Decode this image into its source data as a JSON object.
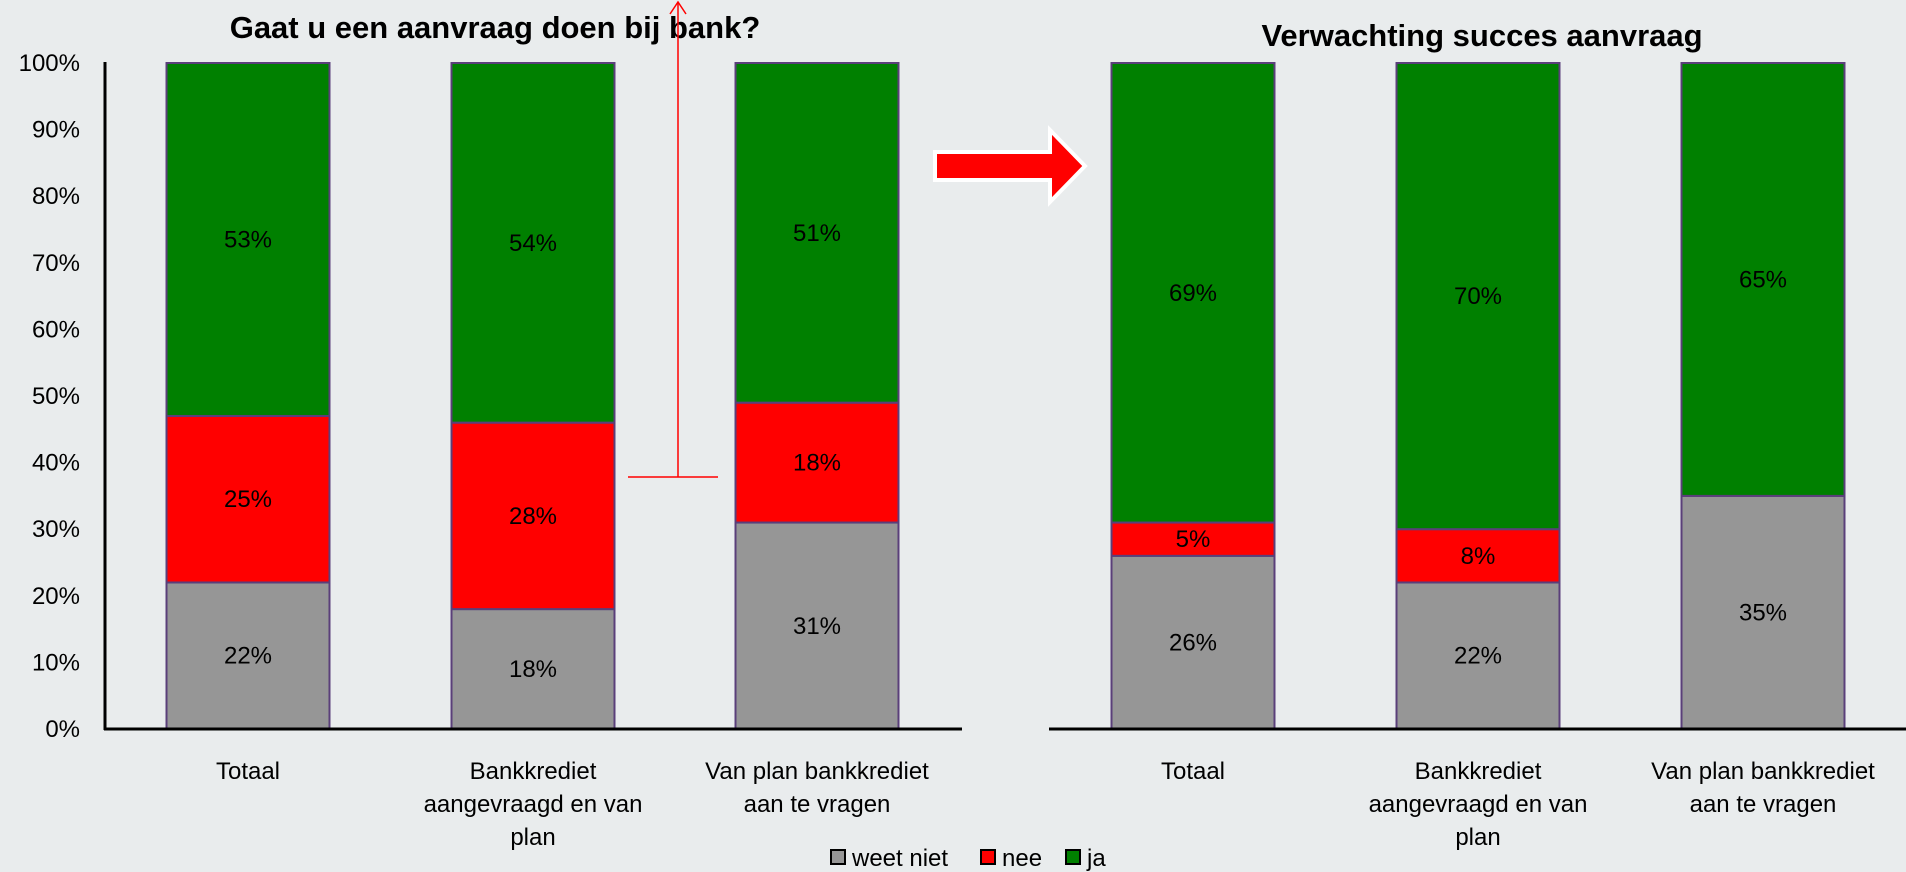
{
  "chart_data": [
    {
      "type": "bar",
      "stacked": true,
      "title": "Gaat u een aanvraag doen bij bank?",
      "categories": [
        [
          "Totaal"
        ],
        [
          "Bankkrediet",
          "aangevraagd en van",
          "plan"
        ],
        [
          "Van plan bankkrediet",
          "aan te vragen"
        ]
      ],
      "series": [
        {
          "name": "weet niet",
          "values": [
            22,
            18,
            31
          ],
          "labels": [
            "22%",
            "18%",
            "31%"
          ]
        },
        {
          "name": "nee",
          "values": [
            25,
            28,
            18
          ],
          "labels": [
            "25%",
            "28%",
            "18%"
          ]
        },
        {
          "name": "ja",
          "values": [
            53,
            54,
            51
          ],
          "labels": [
            "53%",
            "54%",
            "51%"
          ]
        }
      ],
      "ylim": [
        0,
        100
      ],
      "yticks": [
        "0%",
        "10%",
        "20%",
        "30%",
        "40%",
        "50%",
        "60%",
        "70%",
        "80%",
        "90%",
        "100%"
      ],
      "xlabel": "",
      "ylabel": "",
      "grid": false
    },
    {
      "type": "bar",
      "stacked": true,
      "title": "Verwachting succes aanvraag",
      "categories": [
        [
          "Totaal"
        ],
        [
          "Bankkrediet",
          "aangevraagd en van",
          "plan"
        ],
        [
          "Van plan bankkrediet",
          "aan te vragen"
        ]
      ],
      "series": [
        {
          "name": "weet niet",
          "values": [
            26,
            22,
            35
          ],
          "labels": [
            "26%",
            "22%",
            "35%"
          ]
        },
        {
          "name": "nee",
          "values": [
            5,
            8,
            0
          ],
          "labels": [
            "5%",
            "8%",
            ""
          ]
        },
        {
          "name": "ja",
          "values": [
            69,
            70,
            65
          ],
          "labels": [
            "69%",
            "70%",
            "65%"
          ]
        }
      ],
      "ylim": [
        0,
        100
      ],
      "xlabel": "",
      "ylabel": "",
      "grid": false
    }
  ],
  "legend": {
    "position": "bottom",
    "items": [
      {
        "name": "weet niet",
        "color": "#969696"
      },
      {
        "name": "nee",
        "color": "#ff0000"
      },
      {
        "name": "ja",
        "color": "#008000"
      }
    ]
  },
  "colors": {
    "weet_niet": "#969696",
    "nee": "#ff0000",
    "ja": "#008000",
    "bar_border": "#5a3f7a",
    "arrow": "#ff0000",
    "axis": "#000000"
  },
  "annotations": {
    "arrow_icon": "right-arrow-icon"
  }
}
